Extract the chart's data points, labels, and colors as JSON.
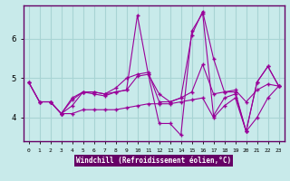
{
  "xlabel": "Windchill (Refroidissement éolien,°C)",
  "background_color": "#c8eaea",
  "line_color": "#990099",
  "xlim": [
    -0.5,
    23.5
  ],
  "ylim": [
    3.4,
    6.85
  ],
  "xticks": [
    0,
    1,
    2,
    3,
    4,
    5,
    6,
    7,
    8,
    9,
    10,
    11,
    12,
    13,
    14,
    15,
    16,
    17,
    18,
    19,
    20,
    21,
    22,
    23
  ],
  "yticks": [
    4,
    5,
    6
  ],
  "grid_color": "#a8d4d4",
  "xlabel_bg": "#660066",
  "xlabel_fg": "#ffffff",
  "lines": [
    {
      "x": [
        0,
        1,
        2,
        3,
        4,
        5,
        6,
        7,
        8,
        9,
        10,
        11,
        12,
        13,
        14,
        15,
        16,
        17,
        18,
        19,
        20,
        21,
        22,
        23
      ],
      "y": [
        4.9,
        4.4,
        4.4,
        4.1,
        4.3,
        4.65,
        4.6,
        4.55,
        4.65,
        4.7,
        6.6,
        5.1,
        3.85,
        3.85,
        3.55,
        6.2,
        6.65,
        4.05,
        4.5,
        4.6,
        3.65,
        4.9,
        5.3,
        4.8
      ]
    },
    {
      "x": [
        0,
        1,
        2,
        3,
        4,
        5,
        6,
        7,
        8,
        9,
        10,
        11,
        12,
        13,
        14,
        15,
        16,
        17,
        18,
        19,
        20,
        21,
        22,
        23
      ],
      "y": [
        4.9,
        4.4,
        4.4,
        4.1,
        4.5,
        4.65,
        4.65,
        4.6,
        4.75,
        5.0,
        5.1,
        5.15,
        4.4,
        4.4,
        4.5,
        4.65,
        5.35,
        4.6,
        4.65,
        4.7,
        4.4,
        4.7,
        4.85,
        4.8
      ]
    },
    {
      "x": [
        0,
        1,
        2,
        3,
        4,
        5,
        6,
        7,
        8,
        9,
        10,
        11,
        12,
        13,
        14,
        15,
        16,
        17,
        18,
        19,
        20,
        21,
        22,
        23
      ],
      "y": [
        4.9,
        4.4,
        4.4,
        4.1,
        4.1,
        4.2,
        4.2,
        4.2,
        4.2,
        4.25,
        4.3,
        4.35,
        4.35,
        4.35,
        4.4,
        4.45,
        4.5,
        4.0,
        4.3,
        4.5,
        3.65,
        4.0,
        4.5,
        4.8
      ]
    },
    {
      "x": [
        2,
        3,
        4,
        5,
        6,
        7,
        8,
        9,
        10,
        11,
        12,
        13,
        14,
        15,
        16,
        17,
        18,
        19,
        20,
        21,
        22,
        23
      ],
      "y": [
        4.4,
        4.1,
        4.45,
        4.65,
        4.65,
        4.6,
        4.65,
        4.7,
        5.05,
        5.1,
        4.6,
        4.4,
        4.5,
        6.1,
        6.7,
        5.5,
        4.65,
        4.65,
        3.65,
        4.9,
        5.3,
        4.8
      ]
    }
  ]
}
